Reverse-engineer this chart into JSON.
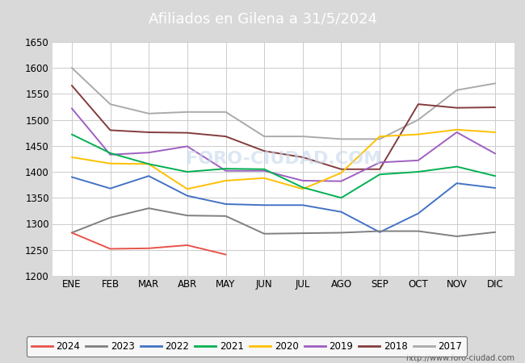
{
  "title": "Afiliados en Gilena a 31/5/2024",
  "title_bg_color": "#4f81bd",
  "ylim": [
    1200,
    1650
  ],
  "yticks": [
    1200,
    1250,
    1300,
    1350,
    1400,
    1450,
    1500,
    1550,
    1600,
    1650
  ],
  "months": [
    "ENE",
    "FEB",
    "MAR",
    "ABR",
    "MAY",
    "JUN",
    "JUL",
    "AGO",
    "SEP",
    "OCT",
    "NOV",
    "DIC"
  ],
  "series": {
    "2024": {
      "color": "#e8534a",
      "data": [
        1283,
        1252,
        1253,
        1259,
        1241,
        null,
        null,
        null,
        null,
        null,
        null,
        null
      ]
    },
    "2023": {
      "color": "#7f7f7f",
      "data": [
        1283,
        1312,
        1330,
        1316,
        1315,
        1281,
        1282,
        1283,
        1286,
        1286,
        1276,
        1284
      ]
    },
    "2022": {
      "color": "#4472c4",
      "data": [
        1390,
        1368,
        1392,
        1354,
        1338,
        1336,
        1336,
        1323,
        1284,
        1320,
        1378,
        1369
      ]
    },
    "2021": {
      "color": "#00b050",
      "data": [
        1472,
        1436,
        1415,
        1400,
        1406,
        1405,
        1370,
        1350,
        1395,
        1400,
        1410,
        1392
      ]
    },
    "2020": {
      "color": "#ffc000",
      "data": [
        1428,
        1416,
        1415,
        1367,
        1383,
        1388,
        1367,
        1398,
        1468,
        1472,
        1481,
        1476
      ]
    },
    "2019": {
      "color": "#9e5fc1",
      "data": [
        1522,
        1433,
        1437,
        1449,
        1402,
        1402,
        1383,
        1382,
        1418,
        1422,
        1476,
        1435
      ]
    },
    "2018": {
      "color": "#843c3c",
      "data": [
        1566,
        1480,
        1476,
        1475,
        1468,
        1440,
        1428,
        1405,
        1405,
        1530,
        1523,
        1524
      ]
    },
    "2017": {
      "color": "#aaaaaa",
      "data": [
        1600,
        1530,
        1512,
        1515,
        1515,
        1468,
        1468,
        1463,
        1463,
        1500,
        1557,
        1570
      ]
    }
  },
  "background_color": "#d9d9d9",
  "plot_bg_color": "#ffffff",
  "grid_color": "#cccccc",
  "footer_text": "http://www.foro-ciudad.com",
  "legend_order": [
    "2024",
    "2023",
    "2022",
    "2021",
    "2020",
    "2019",
    "2018",
    "2017"
  ],
  "series_order": [
    "2017",
    "2018",
    "2019",
    "2020",
    "2021",
    "2022",
    "2023",
    "2024"
  ]
}
